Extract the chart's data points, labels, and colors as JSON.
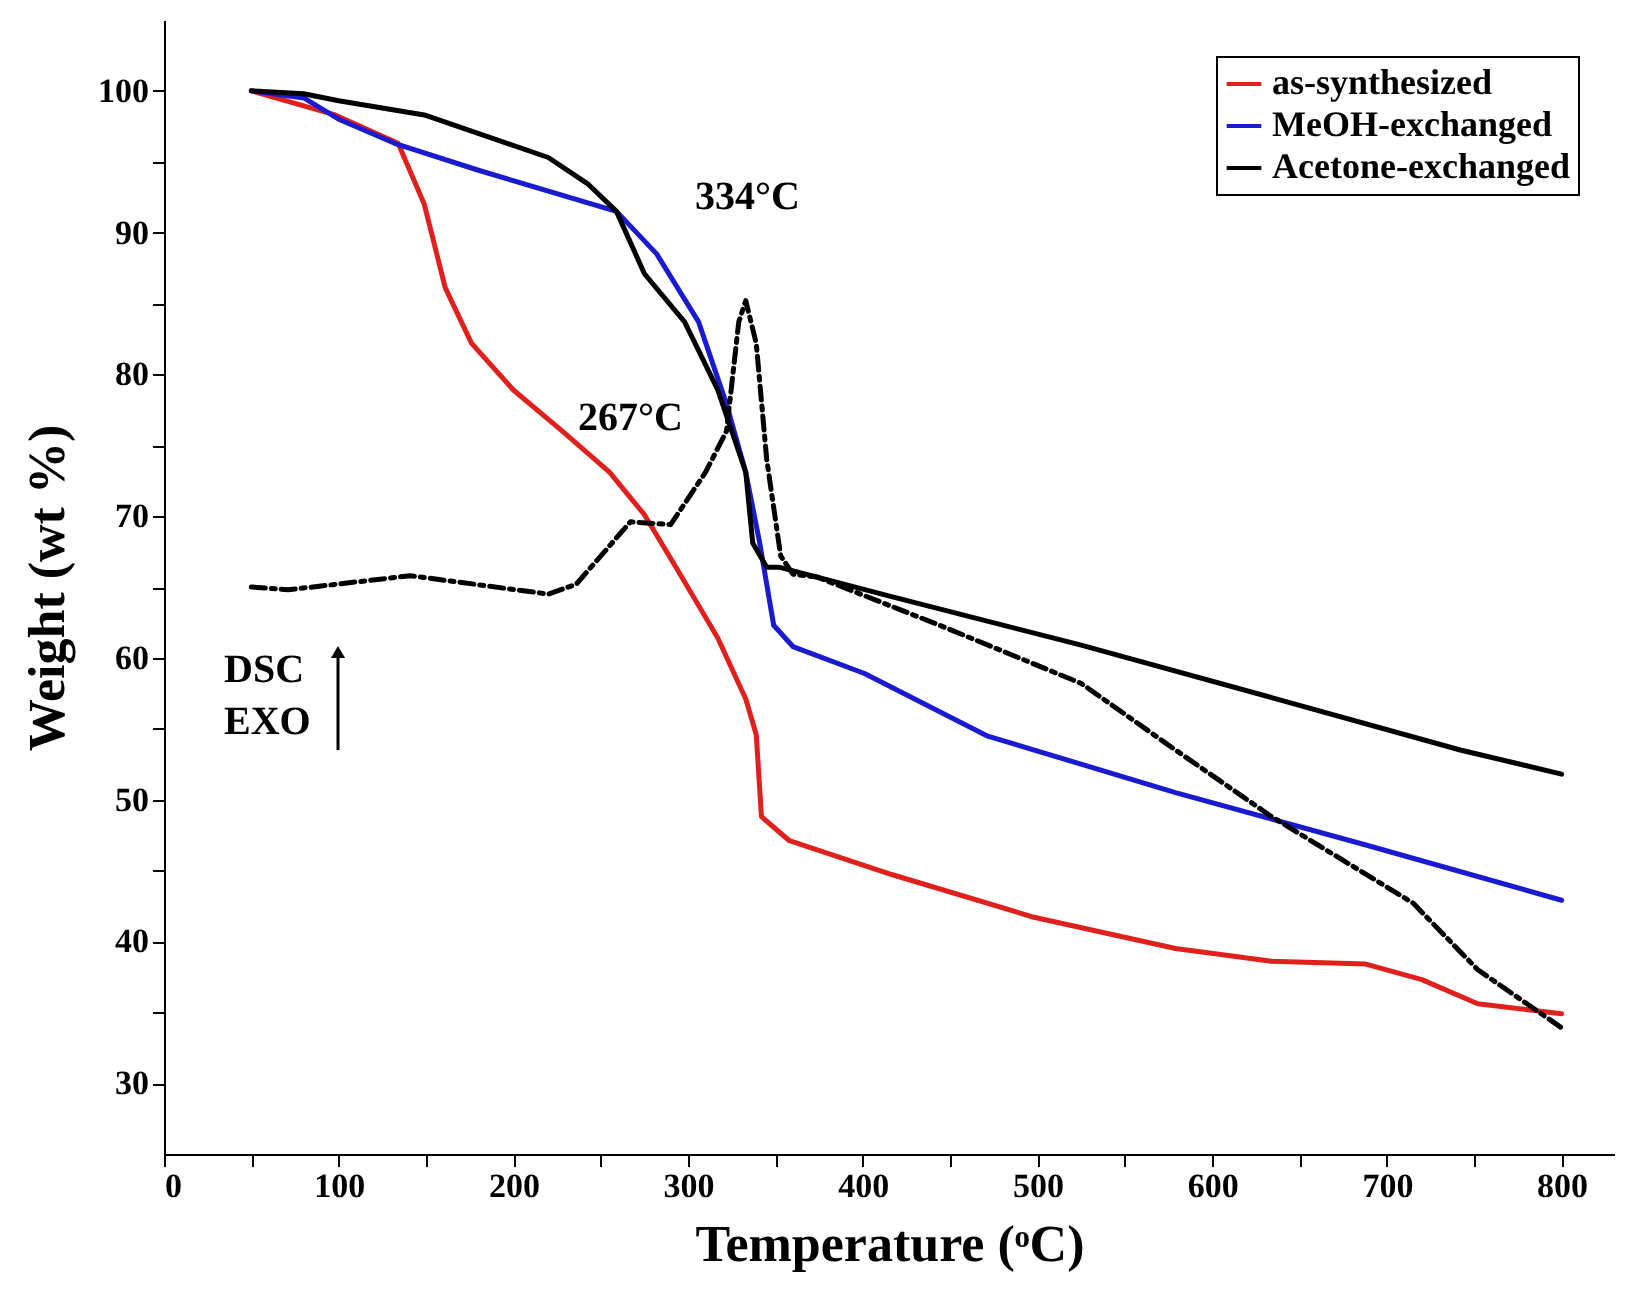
{
  "chart_data": {
    "type": "line",
    "xlabel": "Temperature (ᵒC)",
    "ylabel": "Weight (wt %)",
    "xlim": [
      0,
      830
    ],
    "ylim": [
      25,
      105
    ],
    "xticks": [
      0,
      {
        "value": 50,
        "label": null
      },
      100,
      {
        "value": 150,
        "label": null
      },
      200,
      {
        "value": 250,
        "label": null
      },
      300,
      {
        "value": 350,
        "label": null
      },
      400,
      {
        "value": 450,
        "label": null
      },
      500,
      {
        "value": 550,
        "label": null
      },
      600,
      {
        "value": 650,
        "label": null
      },
      700,
      {
        "value": 750,
        "label": null
      },
      800
    ],
    "yticks": [
      30,
      {
        "value": 35,
        "label": null
      },
      40,
      {
        "value": 45,
        "label": null
      },
      50,
      {
        "value": 55,
        "label": null
      },
      60,
      {
        "value": 65,
        "label": null
      },
      70,
      {
        "value": 75,
        "label": null
      },
      80,
      {
        "value": 85,
        "label": null
      },
      90,
      {
        "value": 95,
        "label": null
      },
      100
    ],
    "grid": false,
    "legend": "top right",
    "marker": "none",
    "series": [
      {
        "name": "as-synthesized",
        "color": "#e0201c",
        "line_style": "solid",
        "x": [
          50,
          98,
          134,
          149,
          161,
          176,
          200,
          228,
          255,
          275,
          294,
          317,
          333,
          339,
          342,
          358,
          417,
          498,
          579,
          634,
          688,
          720,
          752,
          800
        ],
        "values": [
          100,
          98.3,
          96.3,
          92.0,
          86.1,
          82.2,
          78.9,
          76.0,
          73.1,
          70.1,
          66.2,
          61.4,
          57.1,
          54.6,
          48.8,
          47.1,
          44.7,
          41.7,
          39.5,
          38.6,
          38.4,
          37.3,
          35.6,
          34.9
        ]
      },
      {
        "name": "MeOH-exchanged",
        "color": "#1a1ad0",
        "line_style": "solid",
        "x": [
          50,
          80,
          100,
          132,
          180,
          259,
          282,
          306,
          322,
          333,
          341,
          349,
          360,
          401,
          471,
          579,
          688,
          800
        ],
        "values": [
          100,
          99.5,
          98,
          96.3,
          94.4,
          91.5,
          88.5,
          83.7,
          77.9,
          73.1,
          68.1,
          62.3,
          60.8,
          58.9,
          54.5,
          50.5,
          46.8,
          42.9
        ]
      },
      {
        "name": "Acetone-exchanged",
        "color": "#000000",
        "line_style": "solid",
        "x": [
          50,
          80,
          100,
          149,
          220,
          243,
          259,
          275,
          298,
          317,
          333,
          337,
          345,
          352,
          417,
          525,
          634,
          742,
          800
        ],
        "values": [
          100,
          99.8,
          99.3,
          98.3,
          95.3,
          93.4,
          91.5,
          87.1,
          83.7,
          78.9,
          73.1,
          68.1,
          66.4,
          66.4,
          64.3,
          60.9,
          57.2,
          53.5,
          51.8
        ]
      },
      {
        "color": "#000000",
        "line_style": "dashed",
        "x": [
          50,
          71,
          141,
          220,
          236,
          267,
          290,
          310,
          322,
          329,
          333,
          339,
          345,
          353,
          360,
          374,
          444,
          525,
          579,
          634,
          715,
          752,
          800
        ],
        "values": [
          65.0,
          64.8,
          65.8,
          64.5,
          65.2,
          69.6,
          69.4,
          73.1,
          76.0,
          83.7,
          85.2,
          82.2,
          74.0,
          67.2,
          65.9,
          65.7,
          62.3,
          58.2,
          53.5,
          48.8,
          42.7,
          38.0,
          33.9
        ]
      }
    ],
    "annotations": [
      {
        "text": "334°C",
        "x": 334,
        "y": 85.2
      },
      {
        "text": "267°C",
        "x": 267,
        "y": 69.6
      },
      "DSC",
      "EXO"
    ]
  }
}
